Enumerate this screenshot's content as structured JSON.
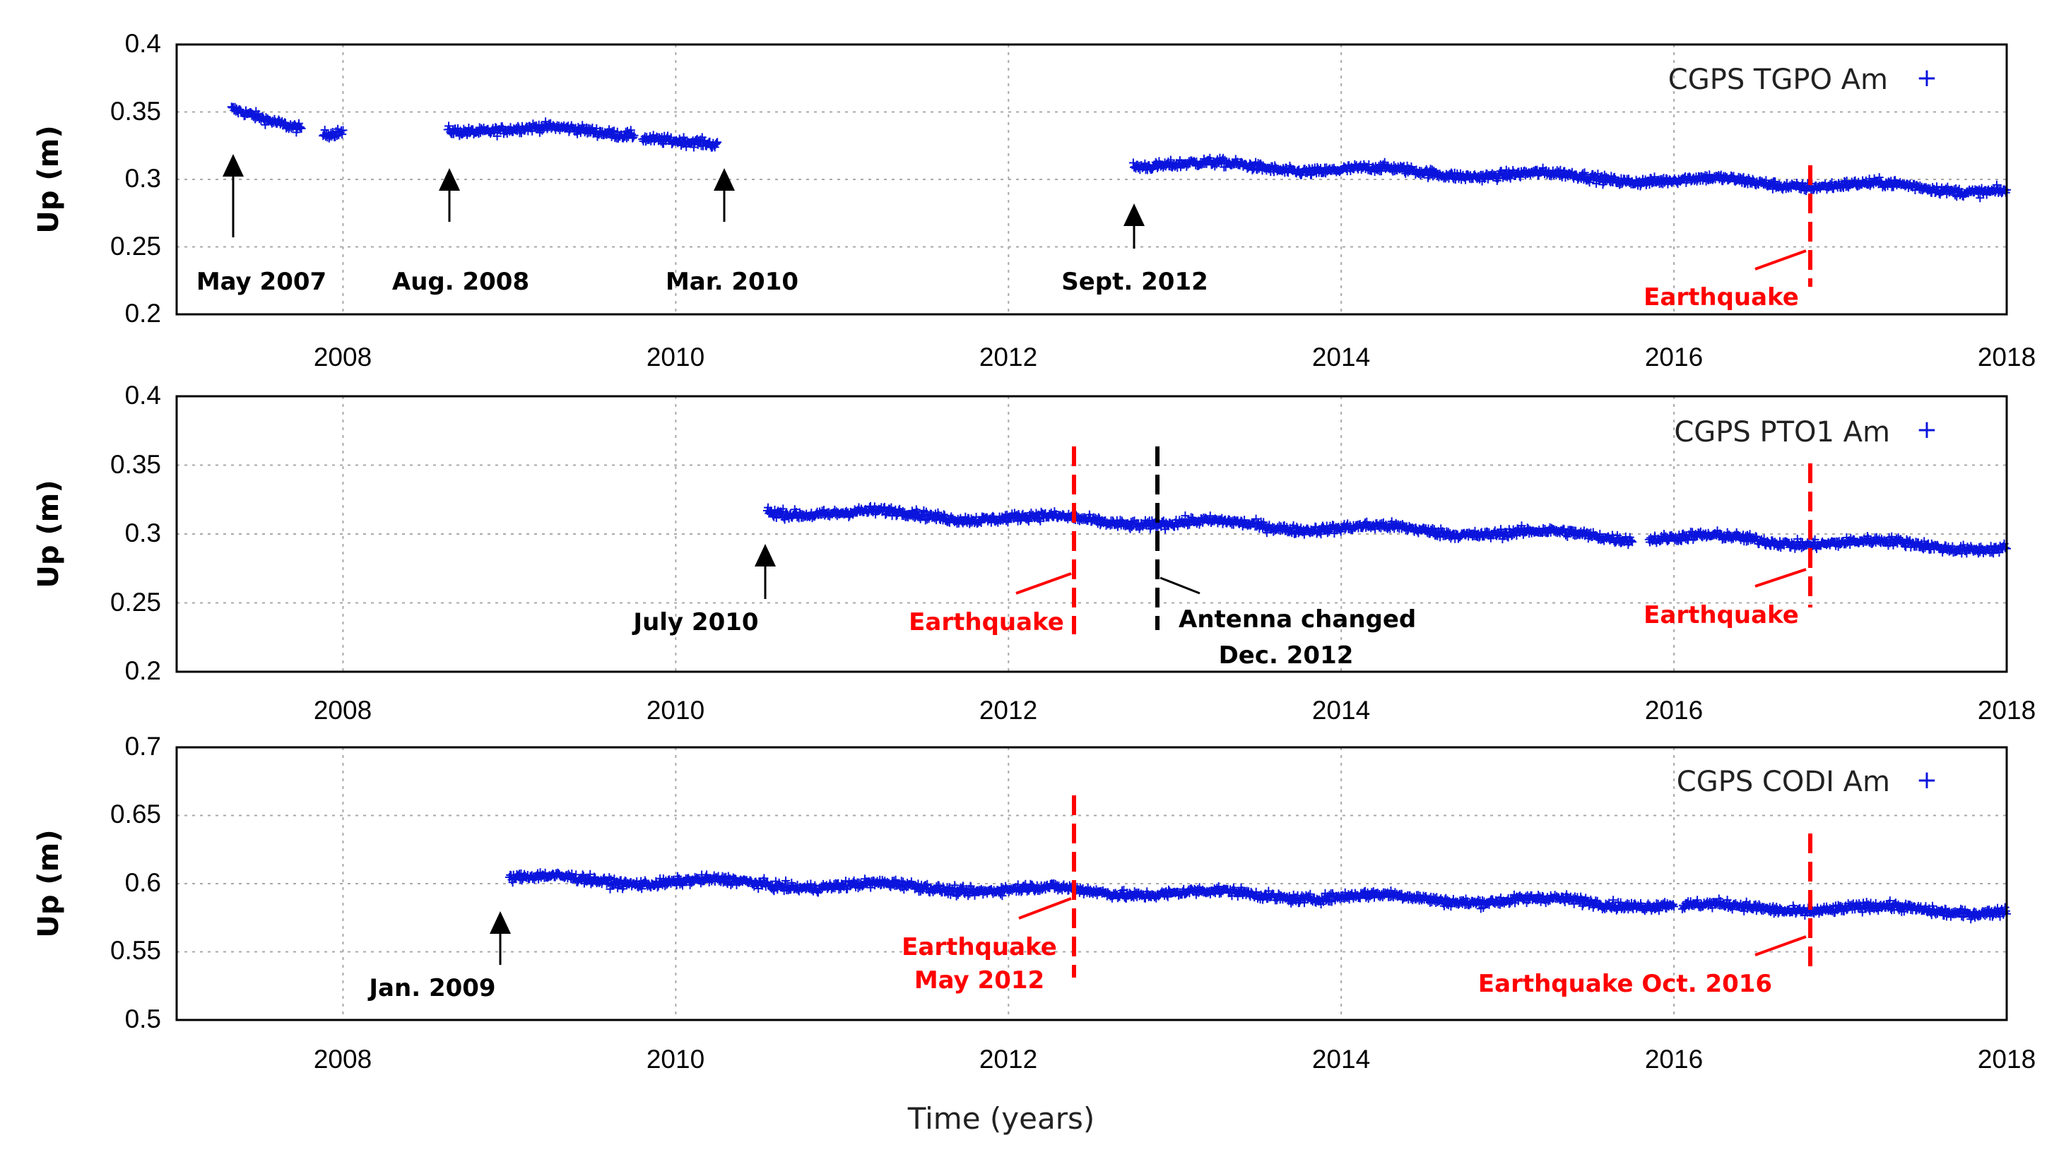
{
  "chart_data": [
    {
      "type": "scatter",
      "panel": "top",
      "xlim": [
        2007,
        2018
      ],
      "ylim": [
        0.2,
        0.4
      ],
      "x_ticks": [
        "2008",
        "2010",
        "2012",
        "2014",
        "2016",
        "2018"
      ],
      "y_ticks": [
        "0.2",
        "0.25",
        "0.3",
        "0.35",
        "0.4"
      ],
      "ylabel": "Up (m)",
      "grid": true,
      "legend": {
        "label": "CGPS TGPO Am",
        "position": "top-right"
      },
      "series": [
        {
          "name": "CGPS TGPO Am",
          "segments": [
            {
              "x": [
                2007.33,
                2007.75
              ],
              "y": [
                0.35,
                0.34
              ]
            },
            {
              "x": [
                2007.88,
                2008.0
              ],
              "y": [
                0.335,
                0.335
              ]
            },
            {
              "x": [
                2008.63,
                2009.75
              ],
              "y": [
                0.338,
                0.335
              ]
            },
            {
              "x": [
                2009.8,
                2010.25
              ],
              "y": [
                0.333,
                0.323
              ]
            },
            {
              "x": [
                2012.75,
                2018.0
              ],
              "y": [
                0.312,
                0.292
              ]
            }
          ]
        }
      ],
      "annotations": [
        {
          "text": "May 2007",
          "x": 2007.33,
          "kind": "arrow",
          "color": "#000000"
        },
        {
          "text": "Aug. 2008",
          "x": 2008.63,
          "kind": "arrow",
          "color": "#000000"
        },
        {
          "text": "Mar. 2010",
          "x": 2010.3,
          "kind": "arrow",
          "color": "#000000"
        },
        {
          "text": "Sept. 2012",
          "x": 2012.78,
          "kind": "arrow",
          "color": "#000000"
        },
        {
          "text": "Earthquake",
          "x": 2016.82,
          "kind": "dashed-line",
          "color": "#ff0000"
        }
      ]
    },
    {
      "type": "scatter",
      "panel": "middle",
      "xlim": [
        2007,
        2018
      ],
      "ylim": [
        0.2,
        0.4
      ],
      "x_ticks": [
        "2008",
        "2010",
        "2012",
        "2014",
        "2016",
        "2018"
      ],
      "y_ticks": [
        "0.2",
        "0.25",
        "0.3",
        "0.35",
        "0.4"
      ],
      "ylabel": "Up (m)",
      "grid": true,
      "legend": {
        "label": "CGPS PTO1 Am",
        "position": "top-right"
      },
      "series": [
        {
          "name": "CGPS PTO1 Am",
          "segments": [
            {
              "x": [
                2010.55,
                2015.75
              ],
              "y": [
                0.317,
                0.298
              ]
            },
            {
              "x": [
                2015.85,
                2018.0
              ],
              "y": [
                0.298,
                0.29
              ]
            }
          ]
        }
      ],
      "annotations": [
        {
          "text": "July 2010",
          "x": 2010.55,
          "kind": "arrow",
          "color": "#000000"
        },
        {
          "text": "Earthquake",
          "x": 2012.4,
          "kind": "dashed-line",
          "color": "#ff0000"
        },
        {
          "text": "Antenna changed",
          "text2": "Dec. 2012",
          "x": 2012.92,
          "kind": "dashed-line",
          "color": "#000000"
        },
        {
          "text": "Earthquake",
          "x": 2016.82,
          "kind": "dashed-line",
          "color": "#ff0000"
        }
      ]
    },
    {
      "type": "scatter",
      "panel": "bottom",
      "xlim": [
        2007,
        2018
      ],
      "ylim": [
        0.5,
        0.7
      ],
      "x_ticks": [
        "2008",
        "2010",
        "2012",
        "2014",
        "2016",
        "2018"
      ],
      "y_ticks": [
        "0.5",
        "0.55",
        "0.6",
        "0.65",
        "0.7"
      ],
      "ylabel": "Up (m)",
      "xlabel": "Time (years)",
      "grid": true,
      "legend": {
        "label": "CGPS CODI Am",
        "position": "top-right"
      },
      "series": [
        {
          "name": "CGPS CODI Am",
          "segments": [
            {
              "x": [
                2009.0,
                2016.0
              ],
              "y": [
                0.604,
                0.585
              ]
            },
            {
              "x": [
                2016.05,
                2018.0
              ],
              "y": [
                0.583,
                0.58
              ]
            }
          ]
        }
      ],
      "annotations": [
        {
          "text": "Jan. 2009",
          "x": 2008.97,
          "kind": "arrow",
          "color": "#000000"
        },
        {
          "text": "Earthquake",
          "text2": "May 2012",
          "x": 2012.4,
          "kind": "dashed-line",
          "color": "#ff0000"
        },
        {
          "text": "Earthquake Oct. 2016",
          "x": 2016.82,
          "kind": "dashed-line",
          "color": "#ff0000"
        }
      ]
    }
  ],
  "colors": {
    "points": "#0a14dc",
    "event": "#ff0000",
    "antenna": "#000000",
    "grid": "#a8a8a8"
  }
}
